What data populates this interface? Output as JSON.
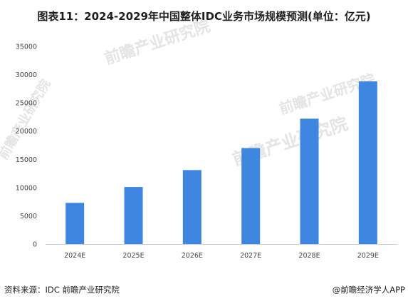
{
  "title": "图表11：2024-2029年中国整体IDC业务市场规模预测(单位：亿元)",
  "watermark": "前瞻产业研究院",
  "chart_data": {
    "type": "bar",
    "title": "图表11：2024-2029年中国整体IDC业务市场规模预测(单位：亿元)",
    "categories": [
      "2024E",
      "2025E",
      "2026E",
      "2027E",
      "2028E",
      "2029E"
    ],
    "values": [
      7300,
      10100,
      13100,
      17000,
      22200,
      28800
    ],
    "ylim": [
      0,
      35000
    ],
    "yticks": [
      0,
      5000,
      10000,
      15000,
      20000,
      25000,
      30000,
      35000
    ],
    "xlabel": "",
    "ylabel": "",
    "grid": false,
    "legend": "none",
    "bar_color": "#3e86e0"
  },
  "footer": {
    "source": "资料来源：IDC 前瞻产业研究院",
    "brand": "@前瞻经济学人APP"
  }
}
